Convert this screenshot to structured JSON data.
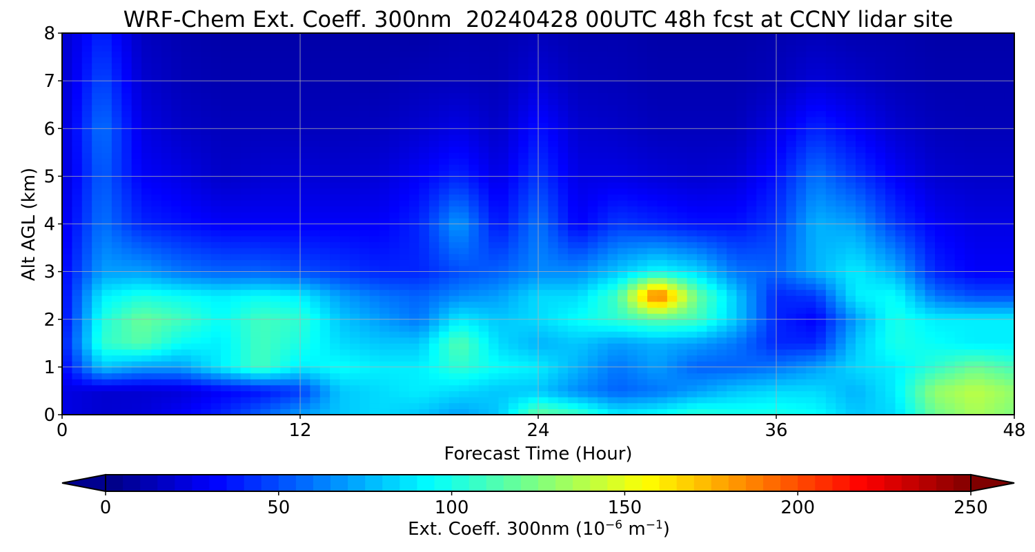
{
  "chart_data": {
    "type": "heatmap",
    "title": "WRF-Chem Ext. Coeff. 300nm  20240428 00UTC 48h fcst at CCNY lidar site",
    "xlabel": "Forecast Time (Hour)",
    "ylabel": "Alt AGL (km)",
    "xlim": [
      0,
      48
    ],
    "ylim": [
      0,
      8
    ],
    "xticks": [
      "0",
      "12",
      "24",
      "36",
      "48"
    ],
    "yticks": [
      "0",
      "1",
      "2",
      "3",
      "4",
      "5",
      "6",
      "7",
      "8"
    ],
    "grid": true,
    "colormap": "jet",
    "colorbar": {
      "label_prefix": "Ext. Coeff. 300nm  (10",
      "label_exp1": "−6",
      "label_mid": " m",
      "label_exp2": "−1",
      "label_suffix": ")",
      "range": [
        0,
        250
      ],
      "ticks": [
        "0",
        "50",
        "100",
        "150",
        "200",
        "250"
      ],
      "extend": "both"
    },
    "hours": [
      0,
      2,
      4,
      6,
      8,
      10,
      12,
      14,
      16,
      18,
      20,
      22,
      24,
      26,
      28,
      30,
      32,
      34,
      36,
      38,
      40,
      42,
      44,
      46,
      48
    ],
    "altitudes_km": [
      0,
      0.5,
      1,
      1.5,
      2,
      2.5,
      3,
      4,
      5,
      6,
      7,
      8
    ],
    "values": [
      [
        25,
        20,
        22,
        30,
        40,
        55,
        70,
        80,
        85,
        80,
        70,
        80,
        120,
        110,
        90,
        95,
        105,
        100,
        100,
        95,
        80,
        85,
        120,
        135,
        125
      ],
      [
        25,
        20,
        20,
        22,
        30,
        35,
        45,
        80,
        85,
        90,
        85,
        80,
        80,
        65,
        55,
        60,
        70,
        80,
        85,
        85,
        75,
        90,
        130,
        140,
        130
      ],
      [
        30,
        80,
        70,
        70,
        90,
        110,
        90,
        95,
        90,
        90,
        105,
        95,
        90,
        75,
        60,
        70,
        55,
        55,
        60,
        70,
        85,
        90,
        105,
        120,
        110
      ],
      [
        35,
        105,
        115,
        95,
        90,
        110,
        100,
        85,
        80,
        80,
        115,
        85,
        75,
        80,
        70,
        75,
        70,
        60,
        40,
        40,
        80,
        100,
        95,
        90,
        90
      ],
      [
        30,
        100,
        120,
        110,
        95,
        110,
        105,
        80,
        70,
        60,
        90,
        80,
        85,
        95,
        105,
        115,
        110,
        80,
        40,
        30,
        70,
        100,
        90,
        90,
        90
      ],
      [
        30,
        90,
        100,
        95,
        90,
        95,
        90,
        70,
        60,
        55,
        65,
        70,
        85,
        85,
        110,
        200,
        120,
        80,
        40,
        45,
        90,
        95,
        60,
        50,
        50
      ],
      [
        30,
        70,
        70,
        60,
        55,
        55,
        50,
        45,
        40,
        40,
        50,
        55,
        65,
        65,
        80,
        95,
        85,
        60,
        55,
        75,
        90,
        75,
        40,
        30,
        30
      ],
      [
        25,
        60,
        40,
        35,
        30,
        30,
        30,
        30,
        30,
        40,
        70,
        35,
        60,
        30,
        45,
        40,
        35,
        35,
        45,
        75,
        70,
        45,
        30,
        25,
        25
      ],
      [
        20,
        55,
        30,
        25,
        18,
        20,
        22,
        20,
        22,
        30,
        40,
        25,
        45,
        25,
        25,
        22,
        20,
        22,
        35,
        60,
        45,
        30,
        20,
        18,
        18
      ],
      [
        20,
        60,
        25,
        18,
        15,
        15,
        15,
        15,
        16,
        20,
        25,
        18,
        35,
        20,
        18,
        15,
        15,
        15,
        25,
        40,
        30,
        20,
        15,
        14,
        14
      ],
      [
        18,
        50,
        20,
        14,
        12,
        12,
        12,
        12,
        12,
        14,
        15,
        14,
        22,
        15,
        14,
        12,
        12,
        12,
        15,
        22,
        18,
        14,
        12,
        12,
        12
      ],
      [
        18,
        40,
        16,
        12,
        10,
        10,
        10,
        10,
        10,
        10,
        12,
        12,
        15,
        12,
        12,
        10,
        10,
        10,
        12,
        14,
        12,
        12,
        10,
        10,
        10
      ]
    ]
  }
}
